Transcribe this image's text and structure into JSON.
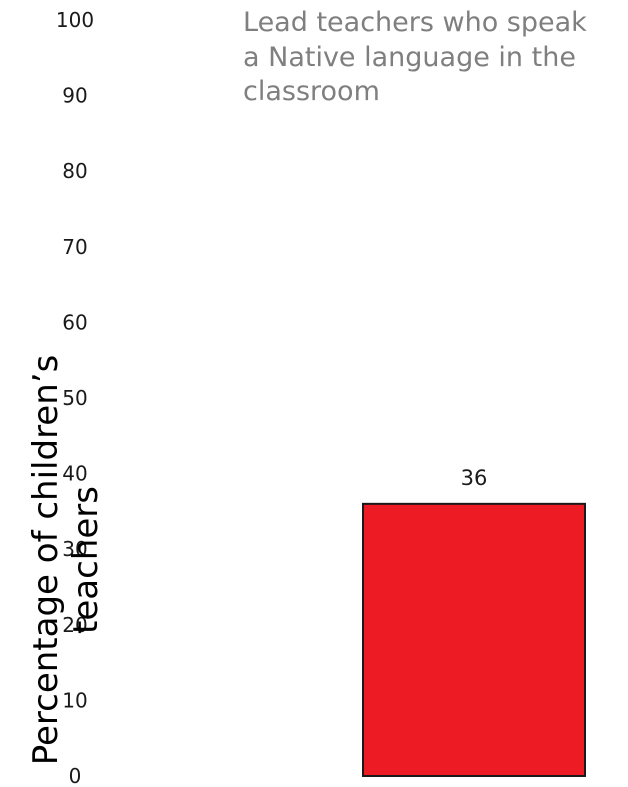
{
  "chart_data": {
    "type": "bar",
    "title_lines": [
      "Lead teachers who speak",
      "a Native language in the",
      "classroom"
    ],
    "ylabel_lines": [
      "Percentage of children’s",
      "teachers"
    ],
    "xlabel": "",
    "ylim": [
      0,
      100
    ],
    "yticks": [
      "0",
      "10",
      "20",
      "30",
      "40",
      "50",
      "60",
      "70",
      "80",
      "90",
      "100"
    ],
    "values": [
      36
    ],
    "value_labels": [
      "36"
    ],
    "grid": false,
    "bar_color": "#ed1c24",
    "bar_edge_color": "#1a1a1a"
  }
}
